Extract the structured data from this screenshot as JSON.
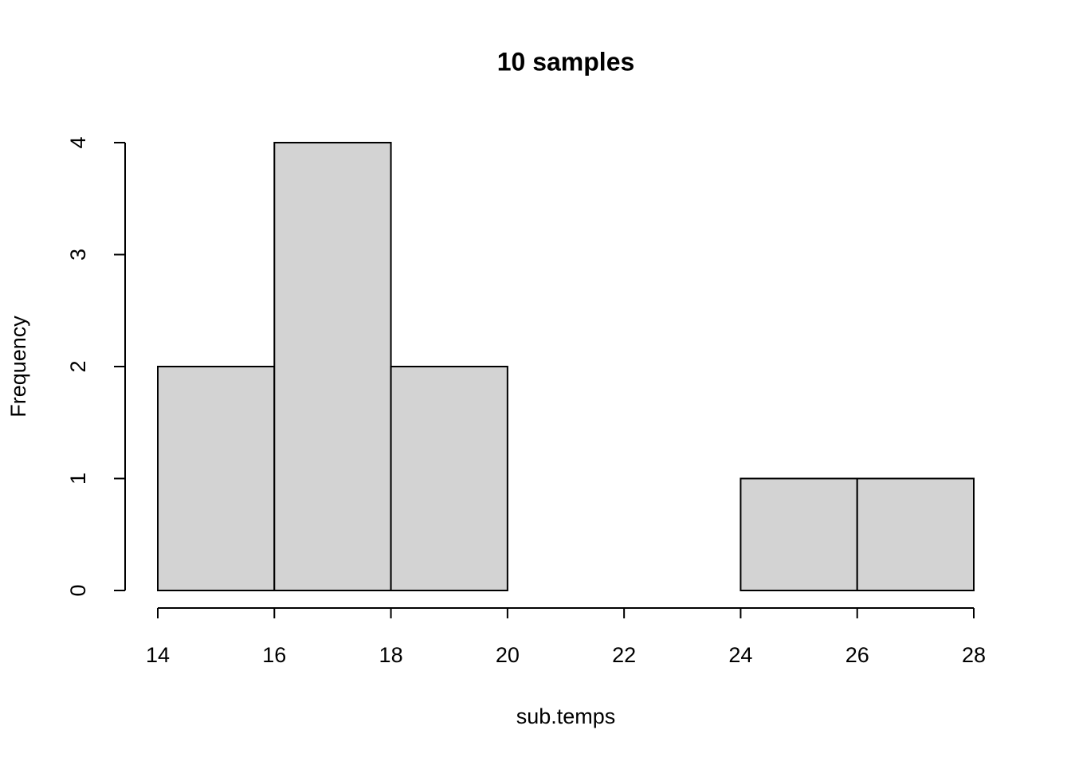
{
  "chart_data": {
    "type": "histogram",
    "title": "10 samples",
    "x_label": "sub.temps",
    "y_label": "Frequency",
    "bins": [
      14,
      16,
      18,
      20,
      22,
      24,
      26,
      28
    ],
    "counts": [
      2,
      4,
      2,
      0,
      0,
      1,
      1
    ],
    "color": "#d3d3d3",
    "xlim": [
      14,
      28
    ],
    "xticks": [
      14,
      16,
      18,
      20,
      22,
      24,
      26,
      28
    ],
    "ylim": [
      0,
      4
    ],
    "yticks": [
      0,
      1,
      2,
      3,
      4
    ]
  }
}
